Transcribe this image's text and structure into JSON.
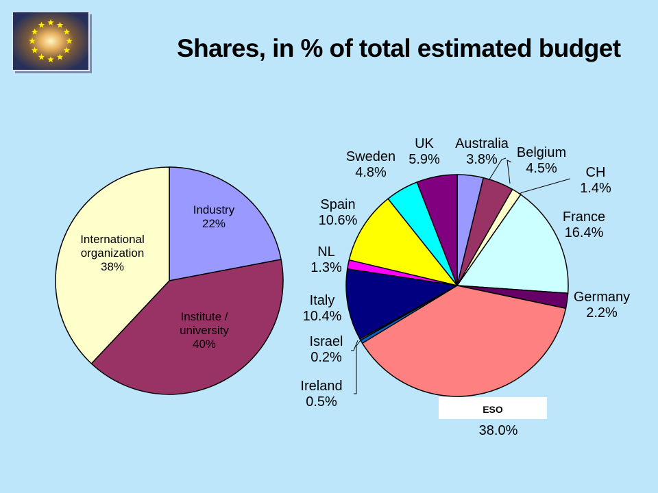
{
  "slide": {
    "title": "Shares, in % of total estimated budget"
  },
  "logo": {
    "icon": "eu-stars-galaxy-icon"
  },
  "chart_data": [
    {
      "type": "pie",
      "title": "",
      "slices": [
        {
          "label": [
            "Industry",
            "22%"
          ],
          "value": 22,
          "color": "#9999ff"
        },
        {
          "label": [
            "Institute /",
            "university",
            "40%"
          ],
          "value": 40,
          "color": "#993366"
        },
        {
          "label": [
            "International",
            "organization",
            "38%"
          ],
          "value": 38,
          "color": "#ffffcc"
        }
      ]
    },
    {
      "type": "pie",
      "title": "",
      "slices": [
        {
          "name": "Australia",
          "value_label": "3.8%",
          "value": 3.8,
          "color": "#9999ff"
        },
        {
          "name": "Belgium",
          "value_label": "4.5%",
          "value": 4.5,
          "color": "#993366"
        },
        {
          "name": "CH",
          "value_label": "1.4%",
          "value": 1.4,
          "color": "#ffffcc"
        },
        {
          "name": "France",
          "value_label": "16.4%",
          "value": 16.4,
          "color": "#ccffff"
        },
        {
          "name": "Germany",
          "value_label": "2.2%",
          "value": 2.2,
          "color": "#660066"
        },
        {
          "name": "ESO",
          "value_label": "38.0%",
          "value": 38.0,
          "color": "#ff8080"
        },
        {
          "name": "Ireland",
          "value_label": "0.5%",
          "value": 0.5,
          "color": "#0066cc"
        },
        {
          "name": "Israel",
          "value_label": "0.2%",
          "value": 0.2,
          "color": "#ccccff"
        },
        {
          "name": "Italy",
          "value_label": "10.4%",
          "value": 10.4,
          "color": "#000080"
        },
        {
          "name": "NL",
          "value_label": "1.3%",
          "value": 1.3,
          "color": "#ff00ff"
        },
        {
          "name": "Spain",
          "value_label": "10.6%",
          "value": 10.6,
          "color": "#ffff00"
        },
        {
          "name": "Sweden",
          "value_label": "4.8%",
          "value": 4.8,
          "color": "#00ffff"
        },
        {
          "name": "UK",
          "value_label": "5.9%",
          "value": 5.9,
          "color": "#800080"
        }
      ]
    }
  ]
}
